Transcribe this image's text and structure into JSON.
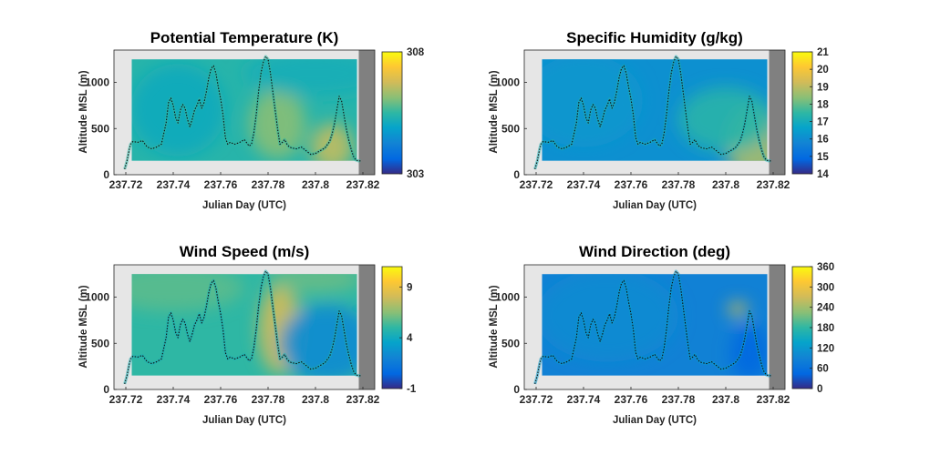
{
  "chart_data": [
    {
      "type": "heatmap",
      "title": "Potential Temperature (K)",
      "xlabel": "Julian Day (UTC)",
      "ylabel": "Altitude MSL (m)",
      "xlim": [
        237.715,
        237.825
      ],
      "ylim": [
        0,
        1350
      ],
      "xticks": [
        "237.72",
        "237.74",
        "237.76",
        "237.78",
        "237.8",
        "237.82"
      ],
      "yticks": [
        "0",
        "500",
        "1000"
      ],
      "colorbar": {
        "min": 303,
        "max": 308,
        "ticks": [
          "303",
          "308"
        ]
      },
      "field_base": 0.48,
      "field_patches": [
        {
          "x": 237.784,
          "y": 550,
          "rx": 0.012,
          "ry": 380,
          "v": 0.62
        },
        {
          "x": 237.807,
          "y": 300,
          "rx": 0.009,
          "ry": 260,
          "v": 0.72
        },
        {
          "x": 237.742,
          "y": 700,
          "rx": 0.02,
          "ry": 500,
          "v": 0.42
        },
        {
          "x": 237.8,
          "y": 1100,
          "rx": 0.03,
          "ry": 250,
          "v": 0.44
        }
      ],
      "track_color_value": 0.5
    },
    {
      "type": "heatmap",
      "title": "Specific Humidity (g/kg)",
      "xlabel": "Julian Day (UTC)",
      "ylabel": "Altitude MSL (m)",
      "xlim": [
        237.715,
        237.825
      ],
      "ylim": [
        0,
        1350
      ],
      "xticks": [
        "237.72",
        "237.74",
        "237.76",
        "237.78",
        "237.8",
        "237.82"
      ],
      "yticks": [
        "0",
        "500",
        "1000"
      ],
      "colorbar": {
        "min": 14,
        "max": 21,
        "ticks": [
          "14",
          "15",
          "16",
          "17",
          "18",
          "19",
          "20",
          "21"
        ]
      },
      "field_base": 0.3,
      "field_patches": [
        {
          "x": 237.812,
          "y": 350,
          "rx": 0.012,
          "ry": 420,
          "v": 0.68
        },
        {
          "x": 237.8,
          "y": 600,
          "rx": 0.02,
          "ry": 350,
          "v": 0.48
        },
        {
          "x": 237.74,
          "y": 800,
          "rx": 0.025,
          "ry": 500,
          "v": 0.33
        }
      ],
      "track_color_value": 0.45
    },
    {
      "type": "heatmap",
      "title": "Wind Speed (m/s)",
      "xlabel": "Julian Day (UTC)",
      "ylabel": "Altitude MSL (m)",
      "xlim": [
        237.715,
        237.825
      ],
      "ylim": [
        0,
        1350
      ],
      "xticks": [
        "237.72",
        "237.74",
        "237.76",
        "237.78",
        "237.8",
        "237.82"
      ],
      "yticks": [
        "0",
        "500",
        "1000"
      ],
      "colorbar": {
        "min": -1,
        "max": 11,
        "ticks": [
          "-1",
          "4",
          "9"
        ]
      },
      "field_base": 0.5,
      "field_patches": [
        {
          "x": 237.785,
          "y": 650,
          "rx": 0.009,
          "ry": 480,
          "v": 0.75
        },
        {
          "x": 237.805,
          "y": 500,
          "rx": 0.02,
          "ry": 420,
          "v": 0.28
        },
        {
          "x": 237.74,
          "y": 1100,
          "rx": 0.03,
          "ry": 250,
          "v": 0.56
        },
        {
          "x": 237.8,
          "y": 1200,
          "rx": 0.02,
          "ry": 150,
          "v": 0.58
        }
      ],
      "track_color_value": 0.45
    },
    {
      "type": "heatmap",
      "title": "Wind Direction (deg)",
      "xlabel": "Julian Day (UTC)",
      "ylabel": "Altitude MSL (m)",
      "xlim": [
        237.715,
        237.825
      ],
      "ylim": [
        0,
        1350
      ],
      "xticks": [
        "237.72",
        "237.74",
        "237.76",
        "237.78",
        "237.8",
        "237.82"
      ],
      "yticks": [
        "0",
        "500",
        "1000"
      ],
      "colorbar": {
        "min": 0,
        "max": 360,
        "ticks": [
          "0",
          "60",
          "120",
          "180",
          "240",
          "300",
          "360"
        ]
      },
      "field_base": 0.24,
      "field_patches": [
        {
          "x": 237.805,
          "y": 870,
          "rx": 0.004,
          "ry": 70,
          "v": 0.82
        },
        {
          "x": 237.81,
          "y": 400,
          "rx": 0.008,
          "ry": 300,
          "v": 0.12
        },
        {
          "x": 237.75,
          "y": 800,
          "rx": 0.03,
          "ry": 500,
          "v": 0.28
        }
      ],
      "track_color_value": 0.35
    }
  ],
  "flight_track": {
    "x": [
      237.7195,
      237.7205,
      237.7215,
      237.722,
      237.723,
      237.725,
      237.727,
      237.729,
      237.731,
      237.733,
      237.735,
      237.737,
      237.738,
      237.739,
      237.74,
      237.741,
      237.742,
      237.743,
      237.744,
      237.745,
      237.746,
      237.747,
      237.748,
      237.749,
      237.75,
      237.751,
      237.752,
      237.753,
      237.754,
      237.755,
      237.756,
      237.757,
      237.758,
      237.759,
      237.76,
      237.761,
      237.762,
      237.763,
      237.764,
      237.766,
      237.768,
      237.77,
      237.772,
      237.773,
      237.774,
      237.775,
      237.776,
      237.777,
      237.778,
      237.779,
      237.78,
      237.781,
      237.782,
      237.783,
      237.784,
      237.785,
      237.786,
      237.787,
      237.788,
      237.789,
      237.79,
      237.792,
      237.794,
      237.796,
      237.798,
      237.8,
      237.802,
      237.804,
      237.806,
      237.807,
      237.808,
      237.809,
      237.81,
      237.811,
      237.812,
      237.813,
      237.814,
      237.815,
      237.816,
      237.817,
      237.818,
      237.819
    ],
    "y": [
      60,
      150,
      280,
      330,
      360,
      350,
      370,
      300,
      280,
      300,
      330,
      560,
      780,
      830,
      750,
      620,
      560,
      700,
      760,
      720,
      600,
      520,
      600,
      700,
      750,
      820,
      720,
      780,
      900,
      1050,
      1150,
      1180,
      1100,
      950,
      820,
      650,
      400,
      330,
      350,
      330,
      350,
      380,
      310,
      330,
      450,
      650,
      900,
      1100,
      1220,
      1280,
      1250,
      1100,
      900,
      700,
      500,
      330,
      350,
      380,
      330,
      300,
      290,
      280,
      300,
      260,
      220,
      230,
      260,
      290,
      360,
      440,
      550,
      700,
      850,
      800,
      650,
      500,
      380,
      280,
      200,
      160,
      150,
      150
    ]
  }
}
